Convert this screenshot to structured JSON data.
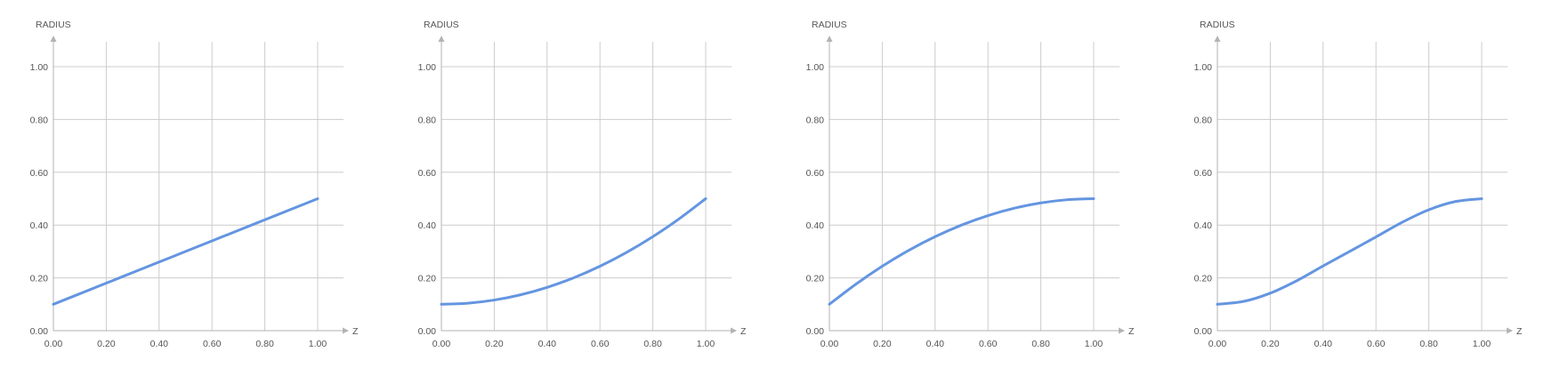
{
  "chart_data": [
    {
      "type": "line",
      "xlabel": "Z",
      "ylabel": "RADIUS",
      "xlim": [
        0,
        1
      ],
      "ylim": [
        0,
        1
      ],
      "x_ticks": [
        "0.00",
        "0.20",
        "0.40",
        "0.60",
        "0.80",
        "1.00"
      ],
      "y_ticks": [
        "0.00",
        "0.20",
        "0.40",
        "0.60",
        "0.80",
        "1.00"
      ],
      "grid": true,
      "series": [
        {
          "color": "#6495e0",
          "x": [
            0.0,
            0.1,
            0.2,
            0.3,
            0.4,
            0.5,
            0.6,
            0.7,
            0.8,
            0.9,
            1.0
          ],
          "y": [
            0.1,
            0.14,
            0.18,
            0.22,
            0.26,
            0.3,
            0.34,
            0.38,
            0.42,
            0.46,
            0.5
          ]
        }
      ]
    },
    {
      "type": "line",
      "xlabel": "Z",
      "ylabel": "RADIUS",
      "xlim": [
        0,
        1
      ],
      "ylim": [
        0,
        1
      ],
      "x_ticks": [
        "0.00",
        "0.20",
        "0.40",
        "0.60",
        "0.80",
        "1.00"
      ],
      "y_ticks": [
        "0.00",
        "0.20",
        "0.40",
        "0.60",
        "0.80",
        "1.00"
      ],
      "grid": true,
      "series": [
        {
          "color": "#6495e0",
          "x": [
            0.0,
            0.1,
            0.2,
            0.3,
            0.4,
            0.5,
            0.6,
            0.7,
            0.8,
            0.9,
            1.0
          ],
          "y": [
            0.1,
            0.104,
            0.116,
            0.136,
            0.164,
            0.2,
            0.244,
            0.296,
            0.356,
            0.424,
            0.5
          ]
        }
      ]
    },
    {
      "type": "line",
      "xlabel": "Z",
      "ylabel": "RADIUS",
      "xlim": [
        0,
        1
      ],
      "ylim": [
        0,
        1
      ],
      "x_ticks": [
        "0.00",
        "0.20",
        "0.40",
        "0.60",
        "0.80",
        "1.00"
      ],
      "y_ticks": [
        "0.00",
        "0.20",
        "0.40",
        "0.60",
        "0.80",
        "1.00"
      ],
      "grid": true,
      "series": [
        {
          "color": "#6495e0",
          "x": [
            0.0,
            0.1,
            0.2,
            0.3,
            0.4,
            0.5,
            0.6,
            0.7,
            0.8,
            0.9,
            1.0
          ],
          "y": [
            0.1,
            0.176,
            0.244,
            0.304,
            0.356,
            0.4,
            0.436,
            0.464,
            0.484,
            0.496,
            0.5
          ]
        }
      ]
    },
    {
      "type": "line",
      "xlabel": "Z",
      "ylabel": "RADIUS",
      "xlim": [
        0,
        1
      ],
      "ylim": [
        0,
        1
      ],
      "x_ticks": [
        "0.00",
        "0.20",
        "0.40",
        "0.60",
        "0.80",
        "1.00"
      ],
      "y_ticks": [
        "0.00",
        "0.20",
        "0.40",
        "0.60",
        "0.80",
        "1.00"
      ],
      "grid": true,
      "series": [
        {
          "color": "#6495e0",
          "x": [
            0.0,
            0.1,
            0.2,
            0.3,
            0.4,
            0.5,
            0.6,
            0.7,
            0.8,
            0.9,
            1.0
          ],
          "y": [
            0.1,
            0.111,
            0.142,
            0.189,
            0.245,
            0.3,
            0.355,
            0.411,
            0.458,
            0.489,
            0.5
          ]
        }
      ]
    }
  ]
}
